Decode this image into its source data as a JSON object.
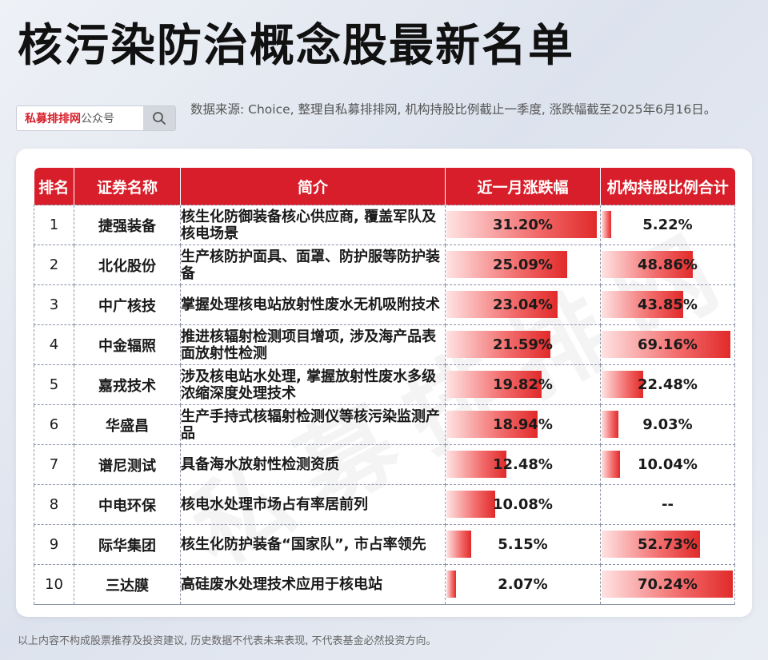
{
  "title": "核污染防治概念股最新名单",
  "search": {
    "brand": "私募排排网",
    "suffix": "公众号",
    "icon": "search-icon"
  },
  "source_note": "数据来源: Choice, 整理自私募排排网, 机构持股比例截止一季度, 涨跌幅截至2025年6月16日。",
  "watermark": "私募排排网",
  "footer": "以上内容不构成股票推荐及投资建议, 历史数据不代表未来表现, 不代表基金必然投资方向。",
  "colors": {
    "accent": "#d81e2a",
    "bar_end": "#e12a2a",
    "bar_start": "#ffe3e3"
  },
  "chart_data": {
    "type": "table",
    "columns": [
      "排名",
      "证券名称",
      "简介",
      "近一月涨跌幅",
      "机构持股比例合计"
    ],
    "bar_max": {
      "change": 31.2,
      "holding": 70.24
    },
    "rows": [
      {
        "rank": "1",
        "name": "捷强装备",
        "desc": "核生化防御装备核心供应商, 覆盖军队及核电场景",
        "change": 31.2,
        "change_label": "31.20%",
        "holding": 5.22,
        "holding_label": "5.22%"
      },
      {
        "rank": "2",
        "name": "北化股份",
        "desc": "生产核防护面具、面罩、防护服等防护装备",
        "change": 25.09,
        "change_label": "25.09%",
        "holding": 48.86,
        "holding_label": "48.86%"
      },
      {
        "rank": "3",
        "name": "中广核技",
        "desc": "掌握处理核电站放射性废水无机吸附技术",
        "change": 23.04,
        "change_label": "23.04%",
        "holding": 43.85,
        "holding_label": "43.85%"
      },
      {
        "rank": "4",
        "name": "中金辐照",
        "desc": "推进核辐射检测项目增项, 涉及海产品表面放射性检测",
        "change": 21.59,
        "change_label": "21.59%",
        "holding": 69.16,
        "holding_label": "69.16%"
      },
      {
        "rank": "5",
        "name": "嘉戎技术",
        "desc": "涉及核电站水处理, 掌握放射性废水多级浓缩深度处理技术",
        "change": 19.82,
        "change_label": "19.82%",
        "holding": 22.48,
        "holding_label": "22.48%"
      },
      {
        "rank": "6",
        "name": "华盛昌",
        "desc": "生产手持式核辐射检测仪等核污染监测产品",
        "change": 18.94,
        "change_label": "18.94%",
        "holding": 9.03,
        "holding_label": "9.03%"
      },
      {
        "rank": "7",
        "name": "谱尼测试",
        "desc": "具备海水放射性检测资质",
        "change": 12.48,
        "change_label": "12.48%",
        "holding": 10.04,
        "holding_label": "10.04%"
      },
      {
        "rank": "8",
        "name": "中电环保",
        "desc": "核电水处理市场占有率居前列",
        "change": 10.08,
        "change_label": "10.08%",
        "holding": null,
        "holding_label": "--"
      },
      {
        "rank": "9",
        "name": "际华集团",
        "desc": "核生化防护装备“国家队”, 市占率领先",
        "change": 5.15,
        "change_label": "5.15%",
        "holding": 52.73,
        "holding_label": "52.73%"
      },
      {
        "rank": "10",
        "name": "三达膜",
        "desc": "高硅废水处理技术应用于核电站",
        "change": 2.07,
        "change_label": "2.07%",
        "holding": 70.24,
        "holding_label": "70.24%"
      }
    ]
  }
}
